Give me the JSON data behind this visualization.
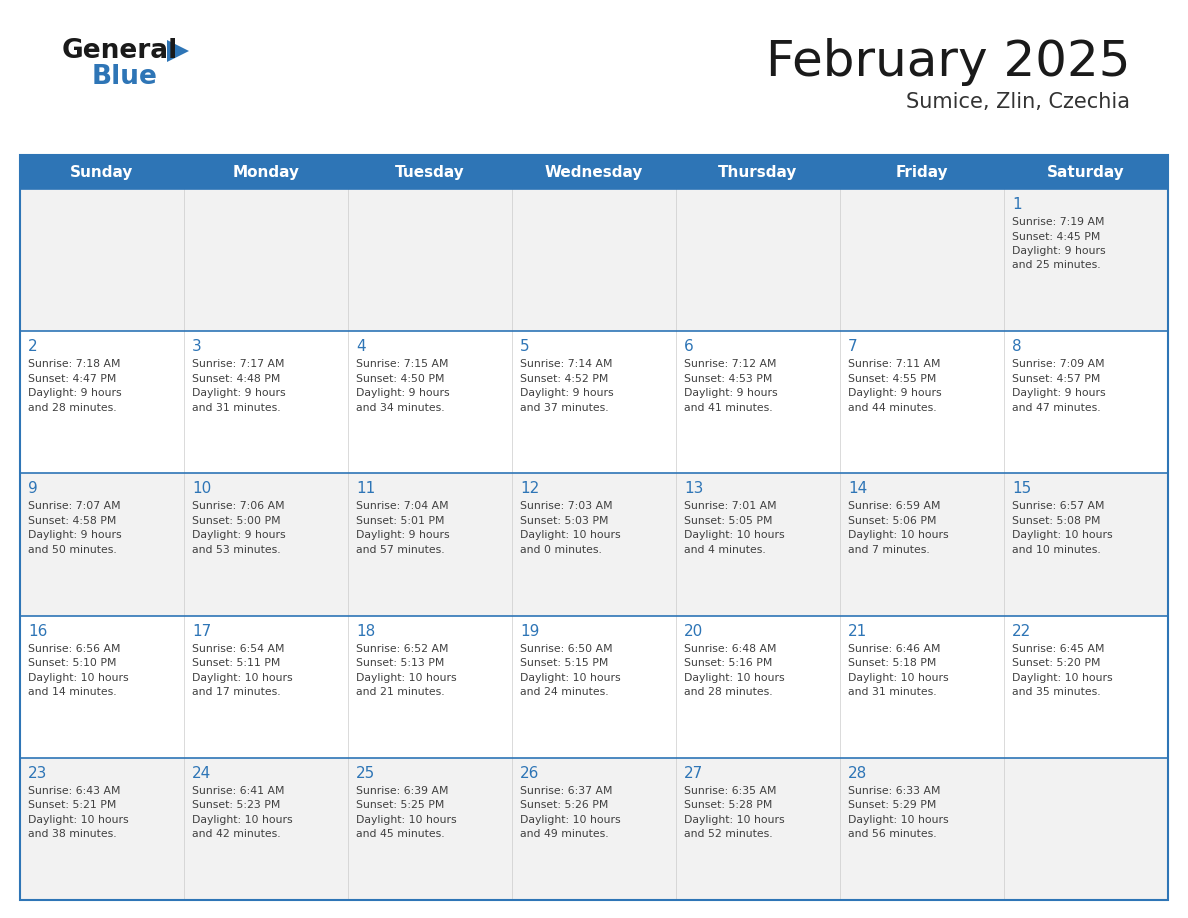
{
  "title": "February 2025",
  "subtitle": "Sumice, Zlin, Czechia",
  "days_of_week": [
    "Sunday",
    "Monday",
    "Tuesday",
    "Wednesday",
    "Thursday",
    "Friday",
    "Saturday"
  ],
  "header_bg": "#2E75B6",
  "header_text": "#FFFFFF",
  "cell_bg_odd": "#F2F2F2",
  "cell_bg_even": "#FFFFFF",
  "row_top_border_color": "#2E75B6",
  "cell_divider_color": "#CCCCCC",
  "text_color": "#404040",
  "day_number_color": "#2E75B6",
  "title_color": "#1a1a1a",
  "subtitle_color": "#333333",
  "logo_general_color": "#1a1a1a",
  "logo_blue_color": "#2E75B6",
  "calendar_data": [
    [
      null,
      null,
      null,
      null,
      null,
      null,
      {
        "day": 1,
        "sunrise": "7:19 AM",
        "sunset": "4:45 PM",
        "daylight": "9 hours and 25 minutes."
      }
    ],
    [
      {
        "day": 2,
        "sunrise": "7:18 AM",
        "sunset": "4:47 PM",
        "daylight": "9 hours and 28 minutes."
      },
      {
        "day": 3,
        "sunrise": "7:17 AM",
        "sunset": "4:48 PM",
        "daylight": "9 hours and 31 minutes."
      },
      {
        "day": 4,
        "sunrise": "7:15 AM",
        "sunset": "4:50 PM",
        "daylight": "9 hours and 34 minutes."
      },
      {
        "day": 5,
        "sunrise": "7:14 AM",
        "sunset": "4:52 PM",
        "daylight": "9 hours and 37 minutes."
      },
      {
        "day": 6,
        "sunrise": "7:12 AM",
        "sunset": "4:53 PM",
        "daylight": "9 hours and 41 minutes."
      },
      {
        "day": 7,
        "sunrise": "7:11 AM",
        "sunset": "4:55 PM",
        "daylight": "9 hours and 44 minutes."
      },
      {
        "day": 8,
        "sunrise": "7:09 AM",
        "sunset": "4:57 PM",
        "daylight": "9 hours and 47 minutes."
      }
    ],
    [
      {
        "day": 9,
        "sunrise": "7:07 AM",
        "sunset": "4:58 PM",
        "daylight": "9 hours and 50 minutes."
      },
      {
        "day": 10,
        "sunrise": "7:06 AM",
        "sunset": "5:00 PM",
        "daylight": "9 hours and 53 minutes."
      },
      {
        "day": 11,
        "sunrise": "7:04 AM",
        "sunset": "5:01 PM",
        "daylight": "9 hours and 57 minutes."
      },
      {
        "day": 12,
        "sunrise": "7:03 AM",
        "sunset": "5:03 PM",
        "daylight": "10 hours and 0 minutes."
      },
      {
        "day": 13,
        "sunrise": "7:01 AM",
        "sunset": "5:05 PM",
        "daylight": "10 hours and 4 minutes."
      },
      {
        "day": 14,
        "sunrise": "6:59 AM",
        "sunset": "5:06 PM",
        "daylight": "10 hours and 7 minutes."
      },
      {
        "day": 15,
        "sunrise": "6:57 AM",
        "sunset": "5:08 PM",
        "daylight": "10 hours and 10 minutes."
      }
    ],
    [
      {
        "day": 16,
        "sunrise": "6:56 AM",
        "sunset": "5:10 PM",
        "daylight": "10 hours and 14 minutes."
      },
      {
        "day": 17,
        "sunrise": "6:54 AM",
        "sunset": "5:11 PM",
        "daylight": "10 hours and 17 minutes."
      },
      {
        "day": 18,
        "sunrise": "6:52 AM",
        "sunset": "5:13 PM",
        "daylight": "10 hours and 21 minutes."
      },
      {
        "day": 19,
        "sunrise": "6:50 AM",
        "sunset": "5:15 PM",
        "daylight": "10 hours and 24 minutes."
      },
      {
        "day": 20,
        "sunrise": "6:48 AM",
        "sunset": "5:16 PM",
        "daylight": "10 hours and 28 minutes."
      },
      {
        "day": 21,
        "sunrise": "6:46 AM",
        "sunset": "5:18 PM",
        "daylight": "10 hours and 31 minutes."
      },
      {
        "day": 22,
        "sunrise": "6:45 AM",
        "sunset": "5:20 PM",
        "daylight": "10 hours and 35 minutes."
      }
    ],
    [
      {
        "day": 23,
        "sunrise": "6:43 AM",
        "sunset": "5:21 PM",
        "daylight": "10 hours and 38 minutes."
      },
      {
        "day": 24,
        "sunrise": "6:41 AM",
        "sunset": "5:23 PM",
        "daylight": "10 hours and 42 minutes."
      },
      {
        "day": 25,
        "sunrise": "6:39 AM",
        "sunset": "5:25 PM",
        "daylight": "10 hours and 45 minutes."
      },
      {
        "day": 26,
        "sunrise": "6:37 AM",
        "sunset": "5:26 PM",
        "daylight": "10 hours and 49 minutes."
      },
      {
        "day": 27,
        "sunrise": "6:35 AM",
        "sunset": "5:28 PM",
        "daylight": "10 hours and 52 minutes."
      },
      {
        "day": 28,
        "sunrise": "6:33 AM",
        "sunset": "5:29 PM",
        "daylight": "10 hours and 56 minutes."
      },
      null
    ]
  ]
}
